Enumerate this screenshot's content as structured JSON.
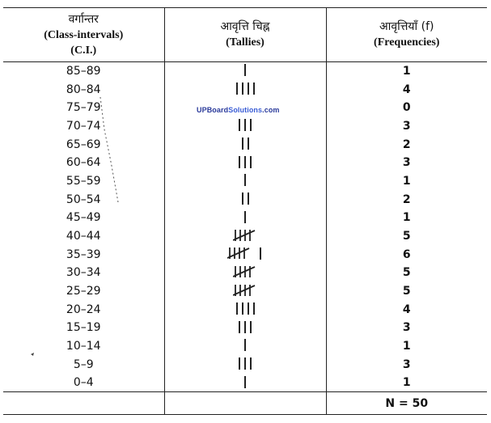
{
  "table": {
    "header": {
      "class_interval": {
        "hi": "वर्गान्तर",
        "en1": "(Class-intervals)",
        "en2": "(C.I.)"
      },
      "tallies": {
        "hi": "आवृत्ति चिह्न",
        "en": "(Tallies)"
      },
      "frequencies": {
        "hi": "आवृत्तियाँ (f)",
        "en": "(Frequencies)"
      }
    },
    "rows": [
      {
        "ci": "85–89",
        "f": "1",
        "tally_count": 1
      },
      {
        "ci": "80–84",
        "f": "4",
        "tally_count": 4
      },
      {
        "ci": "75–79",
        "f": "0",
        "tally_count": 0
      },
      {
        "ci": "70–74",
        "f": "3",
        "tally_count": 3
      },
      {
        "ci": "65–69",
        "f": "2",
        "tally_count": 2
      },
      {
        "ci": "60–64",
        "f": "3",
        "tally_count": 3
      },
      {
        "ci": "55–59",
        "f": "1",
        "tally_count": 1
      },
      {
        "ci": "50–54",
        "f": "2",
        "tally_count": 2
      },
      {
        "ci": "45–49",
        "f": "1",
        "tally_count": 1
      },
      {
        "ci": "40–44",
        "f": "5",
        "tally_count": 5
      },
      {
        "ci": "35–39",
        "f": "6",
        "tally_count": 6
      },
      {
        "ci": "30–34",
        "f": "5",
        "tally_count": 5
      },
      {
        "ci": "25–29",
        "f": "5",
        "tally_count": 5
      },
      {
        "ci": "20–24",
        "f": "4",
        "tally_count": 4
      },
      {
        "ci": "15–19",
        "f": "3",
        "tally_count": 3
      },
      {
        "ci": "10–14",
        "f": "1",
        "tally_count": 1
      },
      {
        "ci": "5–9",
        "f": "3",
        "tally_count": 3
      },
      {
        "ci": "0–4",
        "f": "1",
        "tally_count": 1
      }
    ],
    "total": "N = 50"
  },
  "watermark": {
    "part1": "UPBoard",
    "part2": "Solutions",
    "part3": ".com"
  },
  "colors": {
    "ink": "#111111",
    "rule": "#222222",
    "watermark": "#2a3a9a"
  }
}
